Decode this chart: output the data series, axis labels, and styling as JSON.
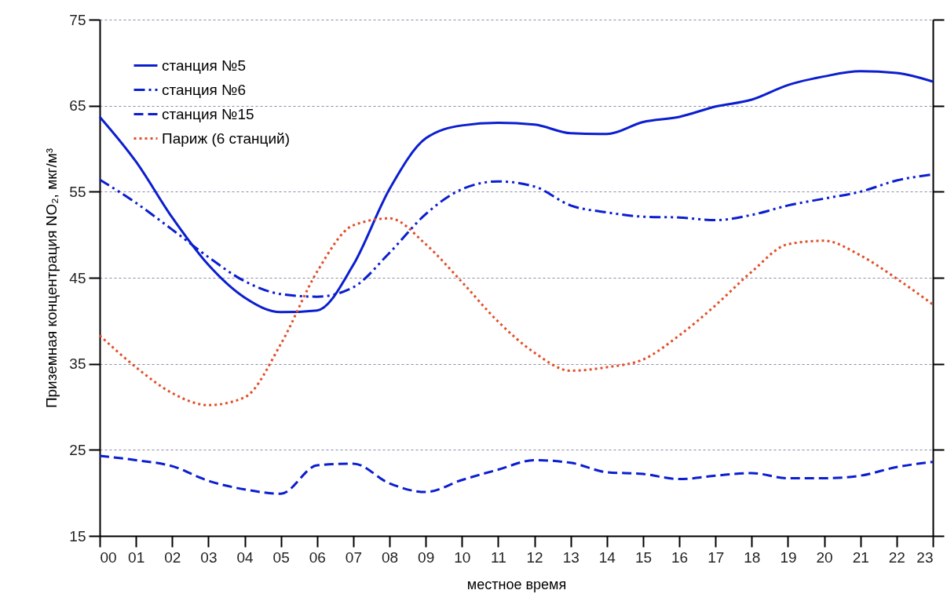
{
  "chart_data": {
    "type": "line",
    "xlabel": "местное время",
    "ylabel": "Приземная концентрация NO₂, мкг/м³",
    "categories": [
      "00",
      "01",
      "02",
      "03",
      "04",
      "05",
      "06",
      "07",
      "08",
      "09",
      "10",
      "11",
      "12",
      "13",
      "14",
      "15",
      "16",
      "17",
      "18",
      "19",
      "20",
      "21",
      "22",
      "23"
    ],
    "ylim": [
      15,
      75
    ],
    "yticks": [
      15,
      25,
      35,
      45,
      55,
      65,
      75
    ],
    "grid": "y",
    "legend": "top left",
    "series": [
      {
        "name": "станция №5",
        "color": "#0b1ed0",
        "line_style": "solid",
        "values": [
          63.7,
          58.5,
          52,
          46.5,
          42.7,
          41,
          41.2,
          46.5,
          55.3,
          61.2,
          62.7,
          63,
          62.8,
          61.8,
          61.7,
          63.1,
          63.7,
          64.9,
          65.7,
          67.4,
          68.4,
          69,
          68.8,
          67.8
        ]
      },
      {
        "name": "станция №6",
        "color": "#0b1ed0",
        "line_style": "dashdot",
        "values": [
          56.4,
          53.7,
          50.6,
          47.4,
          44.6,
          43.1,
          42.8,
          43.9,
          47.9,
          52.4,
          55.3,
          56.2,
          55.6,
          53.4,
          52.6,
          52.1,
          52,
          51.7,
          52.3,
          53.4,
          54.2,
          55,
          56.3,
          57
        ]
      },
      {
        "name": "станция №15",
        "color": "#0b1ed0",
        "line_style": "dashed",
        "values": [
          24.3,
          23.8,
          23.1,
          21.4,
          20.4,
          19.9,
          23.2,
          23.4,
          21.1,
          20.1,
          21.5,
          22.7,
          23.8,
          23.5,
          22.4,
          22.2,
          21.6,
          22,
          22.3,
          21.7,
          21.7,
          22,
          23,
          23.6
        ]
      },
      {
        "name": "Париж (6 станций)",
        "color": "#e0502a",
        "line_style": "dotted",
        "values": [
          38.3,
          34.6,
          31.6,
          30.2,
          31.1,
          37.3,
          45.7,
          51.1,
          51.9,
          48.9,
          44.5,
          39.9,
          36.3,
          34.2,
          34.6,
          35.5,
          38.3,
          41.8,
          45.7,
          48.9,
          49.3,
          47.6,
          44.9,
          41.9
        ]
      }
    ]
  }
}
